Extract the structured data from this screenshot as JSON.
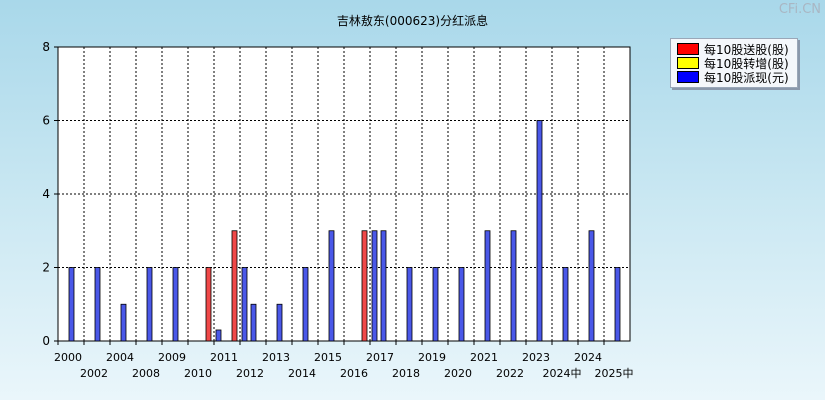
{
  "watermark": "CFi.CN",
  "chart_data": {
    "type": "bar",
    "title": "吉林敖东(000623)分红派息",
    "ylim": [
      0,
      8
    ],
    "yticks": [
      0,
      2,
      4,
      6,
      8
    ],
    "grid": true,
    "legend_position": "top-right",
    "categories": [
      "2000",
      "2002",
      "2004",
      "2008",
      "2009",
      "2010",
      "2011",
      "2012",
      "2013",
      "2014",
      "2015",
      "2016",
      "2017",
      "2018",
      "2019",
      "2020",
      "2021",
      "2022",
      "2023",
      "2024中",
      "2024",
      "2025中"
    ],
    "series": [
      {
        "name": "每10股送股(股)",
        "color": "#ff0000",
        "values": [
          0,
          0,
          0,
          0,
          0,
          2,
          3,
          0,
          0,
          0,
          0,
          3,
          0,
          0,
          0,
          0,
          0,
          0,
          0,
          0,
          0,
          0
        ]
      },
      {
        "name": "每10股转增(股)",
        "color": "#ffff00",
        "values": [
          0,
          0,
          0,
          0,
          0,
          0,
          0,
          0,
          0,
          0,
          0,
          0,
          0,
          0,
          0,
          0,
          0,
          0,
          0,
          0,
          0,
          0
        ]
      },
      {
        "name": "每10股派现(元)",
        "color": "#0000ff",
        "values": [
          2,
          2,
          1,
          2,
          2,
          0.3,
          2,
          1,
          1,
          2,
          3,
          3,
          3,
          2,
          2,
          2,
          3,
          3,
          6,
          2,
          3,
          2
        ]
      }
    ],
    "x_tick_labels": [
      "2000",
      "2002",
      "2004",
      "2008",
      "2009",
      "2010",
      "2011",
      "2012",
      "2013",
      "2014",
      "2015",
      "2016",
      "2017",
      "2018",
      "2019",
      "2020",
      "2021",
      "2022",
      "2023",
      "2024中",
      "2024",
      "2025中"
    ]
  }
}
